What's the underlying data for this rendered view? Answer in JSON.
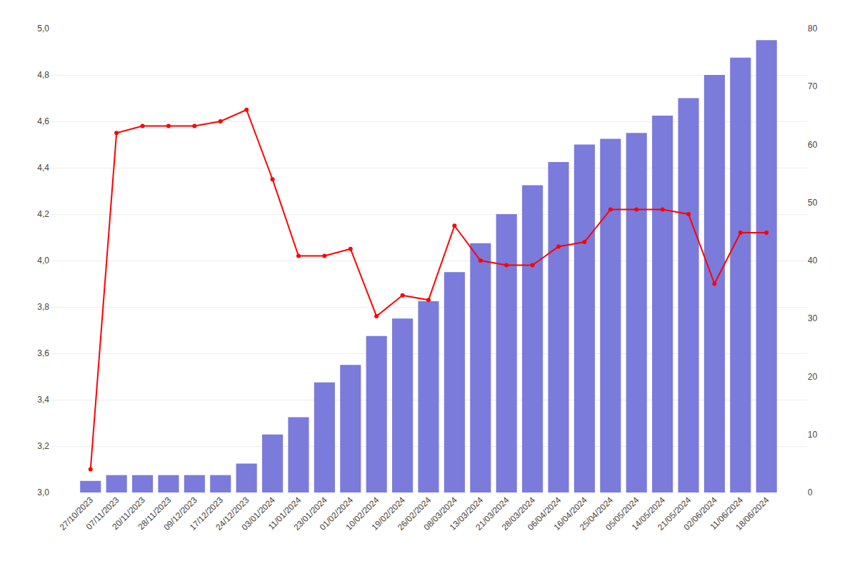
{
  "chart_data": {
    "type": "combo",
    "categories": [
      "27/10/2023",
      "07/11/2023",
      "20/11/2023",
      "28/11/2023",
      "09/12/2023",
      "17/12/2023",
      "24/12/2023",
      "03/01/2024",
      "11/01/2024",
      "23/01/2024",
      "01/02/2024",
      "10/02/2024",
      "19/02/2024",
      "26/02/2024",
      "08/03/2024",
      "13/03/2024",
      "21/03/2024",
      "28/03/2024",
      "06/04/2024",
      "16/04/2024",
      "25/04/2024",
      "05/05/2024",
      "14/05/2024",
      "21/05/2024",
      "02/06/2024",
      "11/06/2024",
      "18/06/2024"
    ],
    "series": [
      {
        "type": "bar",
        "axis": "y2",
        "color": "#7b7bdb",
        "values": [
          2,
          3,
          3,
          3,
          3,
          3,
          5,
          10,
          13,
          19,
          22,
          27,
          30,
          33,
          38,
          43,
          48,
          53,
          57,
          60,
          61,
          62,
          65,
          68,
          72,
          75,
          78
        ]
      },
      {
        "type": "line",
        "color": "#ff0000",
        "marker": "circle",
        "values": [
          3.1,
          4.55,
          4.58,
          4.58,
          4.58,
          4.6,
          4.65,
          4.35,
          4.02,
          4.02,
          4.05,
          3.76,
          3.85,
          3.83,
          4.15,
          4.0,
          3.98,
          3.98,
          4.06,
          4.08,
          4.22,
          4.22,
          4.22,
          4.2,
          3.9,
          4.12,
          4.12
        ]
      }
    ],
    "ylim": [
      3.0,
      5.0
    ],
    "yticks": [
      {
        "value": 3.0,
        "label": "3,0"
      },
      {
        "value": 3.2,
        "label": "3,2"
      },
      {
        "value": 3.4,
        "label": "3,4"
      },
      {
        "value": 3.6,
        "label": "3,6"
      },
      {
        "value": 3.8,
        "label": "3,8"
      },
      {
        "value": 4.0,
        "label": "4,0"
      },
      {
        "value": 4.2,
        "label": "4,2"
      },
      {
        "value": 4.4,
        "label": "4,4"
      },
      {
        "value": 4.6,
        "label": "4,6"
      },
      {
        "value": 4.8,
        "label": "4,8"
      },
      {
        "value": 5.0,
        "label": "5,0"
      }
    ],
    "y2lim": [
      0,
      80
    ],
    "y2ticks": [
      0,
      10,
      20,
      30,
      40,
      50,
      60,
      70,
      80
    ],
    "grid": true
  }
}
